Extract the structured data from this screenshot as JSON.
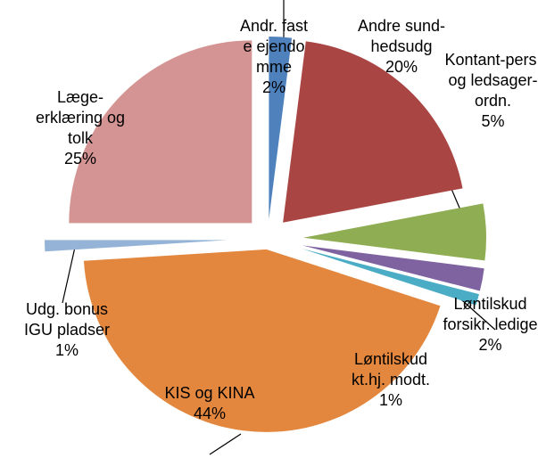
{
  "chart_data": {
    "type": "pie",
    "categories": [
      "Andr. faste ejendomme",
      "Andre sund-hedsudg",
      "Kontant-pers. og ledsager-ordn.",
      "Løntilskud forsikr. ledige",
      "Løntilskud kt.hj. modt.",
      "KIS og KINA",
      "Udg. bonus IGU pladser",
      "Læge-erklæring og tolk"
    ],
    "values": [
      2,
      20,
      5,
      2,
      1,
      44,
      1,
      25
    ],
    "value_labels": [
      "2%",
      "20%",
      "5%",
      "2%",
      "1%",
      "44%",
      "1%",
      "25%"
    ],
    "colors": [
      "#4f81bd",
      "#a94543",
      "#8fad52",
      "#7f62a0",
      "#4bacc6",
      "#e3873e",
      "#95b3d7",
      "#d49493"
    ]
  }
}
